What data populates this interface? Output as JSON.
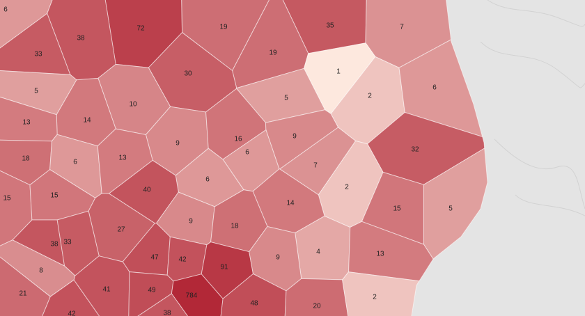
{
  "region_values": [
    6,
    72,
    19,
    35,
    7,
    38,
    33,
    19,
    30,
    1,
    5,
    2,
    6,
    5,
    10,
    14,
    13,
    9,
    16,
    9,
    32,
    18,
    6,
    13,
    6,
    7,
    6,
    2,
    40,
    15,
    15,
    14,
    15,
    5,
    9,
    27,
    18,
    38,
    33,
    4,
    47,
    42,
    91,
    9,
    13,
    8,
    41,
    49,
    784,
    21,
    48,
    20,
    2,
    38,
    42
  ]
}
